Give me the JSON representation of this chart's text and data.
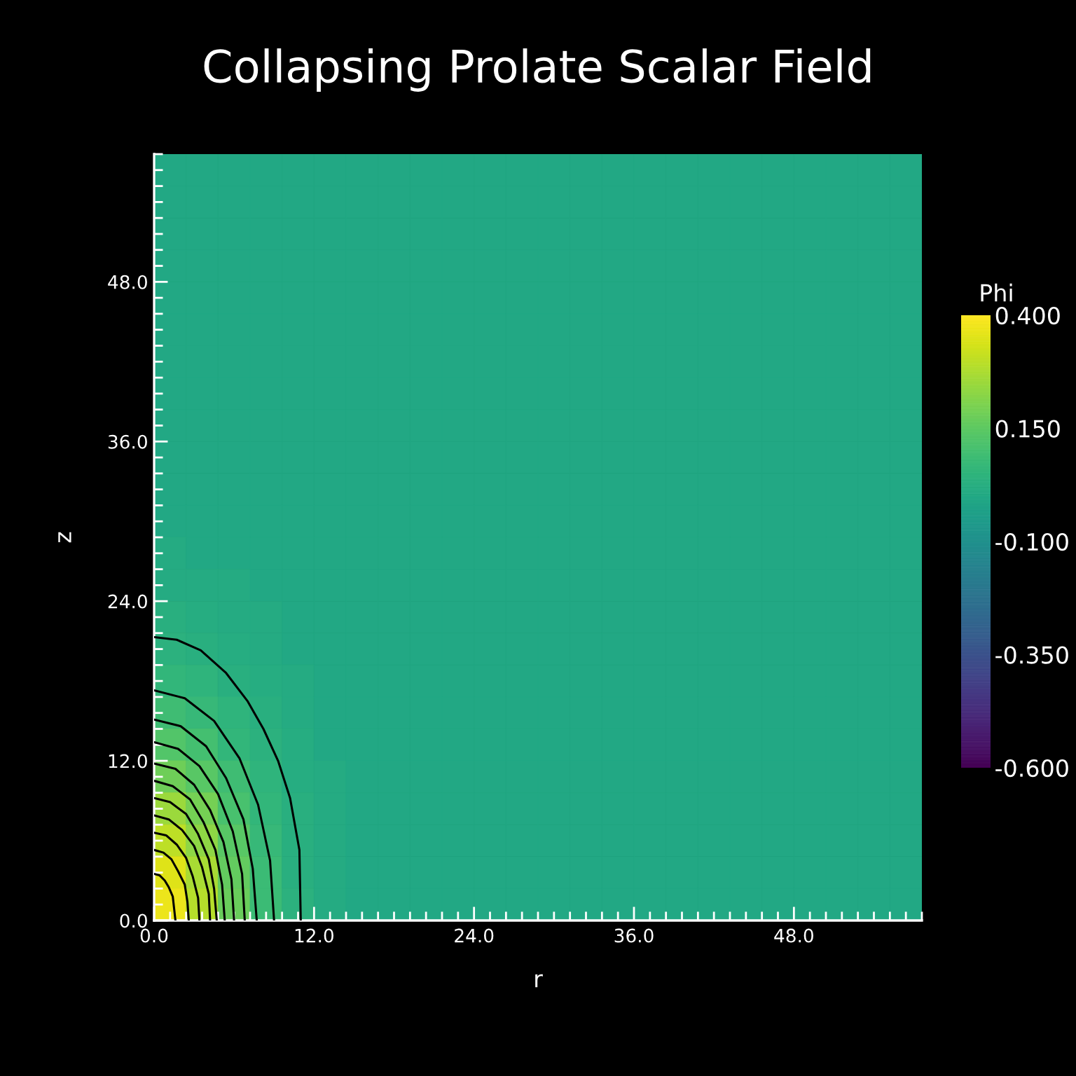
{
  "chart_data": {
    "type": "heatmap",
    "title": "Collapsing Prolate Scalar Field",
    "xlabel": "r",
    "ylabel": "z",
    "clabel": "Phi",
    "cells": [
      [
        0,
        0,
        0,
        0,
        0,
        0,
        0,
        0,
        0,
        0,
        0,
        0,
        0,
        0,
        0,
        0,
        0,
        0,
        0,
        0,
        0,
        0,
        0,
        0
      ],
      [
        0,
        0,
        0,
        0,
        0,
        0,
        0,
        0,
        0,
        0,
        0,
        0,
        0,
        0,
        0,
        0,
        0,
        0,
        0,
        0,
        0,
        0,
        0,
        0
      ],
      [
        0,
        0,
        0,
        0,
        0,
        0,
        0,
        0,
        0,
        0,
        0,
        0,
        0,
        0,
        0,
        0,
        0,
        0,
        0,
        0,
        0,
        0,
        0,
        0
      ],
      [
        0,
        0,
        0,
        0,
        0,
        0,
        0,
        0,
        0,
        0,
        0,
        0,
        0,
        0,
        0,
        0,
        0,
        0,
        0,
        0,
        0,
        0,
        0,
        0
      ],
      [
        0,
        0,
        0,
        0,
        0,
        0,
        0,
        0,
        0,
        0,
        0,
        0,
        0,
        0,
        0,
        0,
        0,
        0,
        0,
        0,
        0,
        0,
        0,
        0
      ],
      [
        0,
        0,
        0,
        0,
        0,
        0,
        0,
        0,
        0,
        0,
        0,
        0,
        0,
        0,
        0,
        0,
        0,
        0,
        0,
        0,
        0,
        0,
        0,
        0
      ],
      [
        0,
        0,
        0,
        0,
        0,
        0,
        0,
        0,
        0,
        0,
        0,
        0,
        0,
        0,
        0,
        0,
        0,
        0,
        0,
        0,
        0,
        0,
        0,
        0
      ],
      [
        0,
        0,
        0,
        0,
        0,
        0,
        0,
        0,
        0,
        0,
        0,
        0,
        0,
        0,
        0,
        0,
        0,
        0,
        0,
        0,
        0,
        0,
        0,
        0
      ],
      [
        0,
        0,
        0,
        0,
        0,
        0,
        0,
        0,
        0,
        0,
        0,
        0,
        0,
        0,
        0,
        0,
        0,
        0,
        0,
        0,
        0,
        0,
        0,
        0
      ],
      [
        0,
        0,
        0,
        0,
        0,
        0,
        0,
        0,
        0,
        0,
        0,
        0,
        0,
        0,
        0,
        0,
        0,
        0,
        0,
        0,
        0,
        0,
        0,
        0
      ],
      [
        0,
        0,
        0,
        0,
        0,
        0,
        0,
        0,
        0,
        0,
        0,
        0,
        0,
        0,
        0,
        0,
        0,
        0,
        0,
        0,
        0,
        0,
        0,
        0
      ],
      [
        0,
        0,
        0,
        0,
        0,
        0,
        0,
        0,
        0,
        0,
        0,
        0,
        0,
        0,
        0,
        0,
        0,
        0,
        0,
        0,
        0,
        0,
        0,
        0
      ],
      [
        0.01,
        0,
        0,
        0,
        0,
        0,
        0,
        0,
        0,
        0,
        0,
        0,
        0,
        0,
        0,
        0,
        0,
        0,
        0,
        0,
        0,
        0,
        0,
        0
      ],
      [
        0.01,
        0.01,
        0.01,
        0,
        0,
        0,
        0,
        0,
        0,
        0,
        0,
        0,
        0,
        0,
        0,
        0,
        0,
        0,
        0,
        0,
        0,
        0,
        0,
        0
      ],
      [
        0.03,
        0.02,
        0.01,
        0.01,
        0,
        0,
        0,
        0,
        0,
        0,
        0,
        0,
        0,
        0,
        0,
        0,
        0,
        0,
        0,
        0,
        0,
        0,
        0,
        0
      ],
      [
        0.04,
        0.03,
        0.02,
        0.01,
        0,
        0,
        0,
        0,
        0,
        0,
        0,
        0,
        0,
        0,
        0,
        0,
        0,
        0,
        0,
        0,
        0,
        0,
        0,
        0
      ],
      [
        0.06,
        0.05,
        0.03,
        0.02,
        0.01,
        0,
        0,
        0,
        0,
        0,
        0,
        0,
        0,
        0,
        0,
        0,
        0,
        0,
        0,
        0,
        0,
        0,
        0,
        0
      ],
      [
        0.09,
        0.07,
        0.05,
        0.03,
        0.01,
        0,
        0,
        0,
        0,
        0,
        0,
        0,
        0,
        0,
        0,
        0,
        0,
        0,
        0,
        0,
        0,
        0,
        0,
        0
      ],
      [
        0.13,
        0.1,
        0.06,
        0.04,
        0.02,
        0,
        0,
        0,
        0,
        0,
        0,
        0,
        0,
        0,
        0,
        0,
        0,
        0,
        0,
        0,
        0,
        0,
        0,
        0
      ],
      [
        0.18,
        0.14,
        0.09,
        0.05,
        0.02,
        0.01,
        0,
        0,
        0,
        0,
        0,
        0,
        0,
        0,
        0,
        0,
        0,
        0,
        0,
        0,
        0,
        0,
        0,
        0
      ],
      [
        0.25,
        0.19,
        0.11,
        0.06,
        0.03,
        0.01,
        0,
        0,
        0,
        0,
        0,
        0,
        0,
        0,
        0,
        0,
        0,
        0,
        0,
        0,
        0,
        0,
        0,
        0
      ],
      [
        0.3,
        0.23,
        0.14,
        0.07,
        0.03,
        0.01,
        0,
        0,
        0,
        0,
        0,
        0,
        0,
        0,
        0,
        0,
        0,
        0,
        0,
        0,
        0,
        0,
        0,
        0
      ],
      [
        0.35,
        0.27,
        0.16,
        0.08,
        0.03,
        0.01,
        0,
        0,
        0,
        0,
        0,
        0,
        0,
        0,
        0,
        0,
        0,
        0,
        0,
        0,
        0,
        0,
        0,
        0
      ],
      [
        0.37,
        0.29,
        0.17,
        0.08,
        0.04,
        0.01,
        0,
        0,
        0,
        0,
        0,
        0,
        0,
        0,
        0,
        0,
        0,
        0,
        0,
        0,
        0,
        0,
        0,
        0
      ]
    ],
    "clim": [
      -0.6,
      0.4
    ],
    "cticks": [
      {
        "value": -0.6,
        "label": "-0.600"
      },
      {
        "value": -0.35,
        "label": "-0.350"
      },
      {
        "value": -0.1,
        "label": "-0.100"
      },
      {
        "value": 0.15,
        "label": "0.150"
      },
      {
        "value": 0.4,
        "label": "0.400"
      }
    ],
    "xlim": [
      0,
      57.6
    ],
    "ylim": [
      0,
      57.6
    ],
    "xticks": [
      {
        "value": 0,
        "label": "0.0"
      },
      {
        "value": 1.2,
        "label": null
      },
      {
        "value": 2.4,
        "label": null
      },
      {
        "value": 3.6,
        "label": null
      },
      {
        "value": 4.8,
        "label": null
      },
      {
        "value": 6,
        "label": null
      },
      {
        "value": 7.2,
        "label": null
      },
      {
        "value": 8.4,
        "label": null
      },
      {
        "value": 9.6,
        "label": null
      },
      {
        "value": 10.8,
        "label": null
      },
      {
        "value": 12,
        "label": "12.0"
      },
      {
        "value": 13.2,
        "label": null
      },
      {
        "value": 14.4,
        "label": null
      },
      {
        "value": 15.6,
        "label": null
      },
      {
        "value": 16.8,
        "label": null
      },
      {
        "value": 18,
        "label": null
      },
      {
        "value": 19.2,
        "label": null
      },
      {
        "value": 20.4,
        "label": null
      },
      {
        "value": 21.6,
        "label": null
      },
      {
        "value": 22.8,
        "label": null
      },
      {
        "value": 24,
        "label": "24.0"
      },
      {
        "value": 25.2,
        "label": null
      },
      {
        "value": 26.4,
        "label": null
      },
      {
        "value": 27.6,
        "label": null
      },
      {
        "value": 28.8,
        "label": null
      },
      {
        "value": 30,
        "label": null
      },
      {
        "value": 31.2,
        "label": null
      },
      {
        "value": 32.4,
        "label": null
      },
      {
        "value": 33.6,
        "label": null
      },
      {
        "value": 34.8,
        "label": null
      },
      {
        "value": 36,
        "label": "36.0"
      },
      {
        "value": 37.2,
        "label": null
      },
      {
        "value": 38.4,
        "label": null
      },
      {
        "value": 39.6,
        "label": null
      },
      {
        "value": 40.8,
        "label": null
      },
      {
        "value": 42,
        "label": null
      },
      {
        "value": 43.2,
        "label": null
      },
      {
        "value": 44.4,
        "label": null
      },
      {
        "value": 45.6,
        "label": null
      },
      {
        "value": 46.8,
        "label": null
      },
      {
        "value": 48,
        "label": "48.0"
      },
      {
        "value": 49.2,
        "label": null
      },
      {
        "value": 50.4,
        "label": null
      },
      {
        "value": 51.6,
        "label": null
      },
      {
        "value": 52.8,
        "label": null
      },
      {
        "value": 54,
        "label": null
      },
      {
        "value": 55.2,
        "label": null
      },
      {
        "value": 56.4,
        "label": null
      },
      {
        "value": 57.6,
        "label": null
      }
    ],
    "yticks": [
      {
        "value": 0,
        "label": "0.0"
      },
      {
        "value": 1.2,
        "label": null
      },
      {
        "value": 2.4,
        "label": null
      },
      {
        "value": 3.6,
        "label": null
      },
      {
        "value": 4.8,
        "label": null
      },
      {
        "value": 6,
        "label": null
      },
      {
        "value": 7.2,
        "label": null
      },
      {
        "value": 8.4,
        "label": null
      },
      {
        "value": 9.6,
        "label": null
      },
      {
        "value": 10.8,
        "label": null
      },
      {
        "value": 12,
        "label": "12.0"
      },
      {
        "value": 13.2,
        "label": null
      },
      {
        "value": 14.4,
        "label": null
      },
      {
        "value": 15.6,
        "label": null
      },
      {
        "value": 16.8,
        "label": null
      },
      {
        "value": 18,
        "label": null
      },
      {
        "value": 19.2,
        "label": null
      },
      {
        "value": 20.4,
        "label": null
      },
      {
        "value": 21.6,
        "label": null
      },
      {
        "value": 22.8,
        "label": null
      },
      {
        "value": 24,
        "label": "24.0"
      },
      {
        "value": 25.2,
        "label": null
      },
      {
        "value": 26.4,
        "label": null
      },
      {
        "value": 27.6,
        "label": null
      },
      {
        "value": 28.8,
        "label": null
      },
      {
        "value": 30,
        "label": null
      },
      {
        "value": 31.2,
        "label": null
      },
      {
        "value": 32.4,
        "label": null
      },
      {
        "value": 33.6,
        "label": null
      },
      {
        "value": 34.8,
        "label": null
      },
      {
        "value": 36,
        "label": "36.0"
      },
      {
        "value": 37.2,
        "label": null
      },
      {
        "value": 38.4,
        "label": null
      },
      {
        "value": 39.6,
        "label": null
      },
      {
        "value": 40.8,
        "label": null
      },
      {
        "value": 42,
        "label": null
      },
      {
        "value": 43.2,
        "label": null
      },
      {
        "value": 44.4,
        "label": null
      },
      {
        "value": 45.6,
        "label": null
      },
      {
        "value": 46.8,
        "label": null
      },
      {
        "value": 48,
        "label": "48.0"
      },
      {
        "value": 49.2,
        "label": null
      },
      {
        "value": 50.4,
        "label": null
      },
      {
        "value": 51.6,
        "label": null
      },
      {
        "value": 52.8,
        "label": null
      },
      {
        "value": 54,
        "label": null
      },
      {
        "value": 55.2,
        "label": null
      },
      {
        "value": 56.4,
        "label": null
      },
      {
        "value": 57.6,
        "label": null
      }
    ],
    "series": [
      {
        "type": "line",
        "color": "#000000",
        "x": [
          0,
          1.7,
          3.5,
          5.4,
          7.0,
          8.2,
          9.3,
          10.2,
          10.9,
          11.0
        ],
        "values": [
          21.3,
          21.1,
          20.3,
          18.6,
          16.5,
          14.4,
          12.0,
          9.2,
          5.3,
          0
        ]
      },
      {
        "type": "line",
        "color": "#000000",
        "x": [
          0,
          2.3,
          4.5,
          6.4,
          7.8,
          8.7,
          9.0
        ],
        "values": [
          17.3,
          16.7,
          15.0,
          12.2,
          8.7,
          4.5,
          0
        ]
      },
      {
        "type": "line",
        "color": "#000000",
        "x": [
          0,
          2.0,
          3.9,
          5.4,
          6.7,
          7.4,
          7.7
        ],
        "values": [
          15.1,
          14.6,
          13.1,
          10.7,
          7.6,
          3.9,
          0
        ]
      },
      {
        "type": "line",
        "color": "#000000",
        "x": [
          0,
          1.8,
          3.4,
          4.8,
          5.9,
          6.6,
          6.8
        ],
        "values": [
          13.4,
          12.9,
          11.6,
          9.5,
          6.7,
          3.5,
          0
        ]
      },
      {
        "type": "line",
        "color": "#000000",
        "x": [
          0,
          1.6,
          3.0,
          4.2,
          5.2,
          5.8,
          6.0
        ],
        "values": [
          11.8,
          11.4,
          10.2,
          8.3,
          5.9,
          3.1,
          0
        ]
      },
      {
        "type": "line",
        "color": "#000000",
        "x": [
          0,
          1.4,
          2.7,
          3.7,
          4.6,
          5.1,
          5.3
        ],
        "values": [
          10.5,
          10.1,
          9.1,
          7.4,
          5.3,
          2.7,
          0
        ]
      },
      {
        "type": "line",
        "color": "#000000",
        "x": [
          0,
          1.2,
          2.4,
          3.3,
          4.1,
          4.5,
          4.7
        ],
        "values": [
          9.2,
          8.9,
          8.0,
          6.5,
          4.6,
          2.4,
          0
        ]
      },
      {
        "type": "line",
        "color": "#000000",
        "x": [
          0,
          1.1,
          2.1,
          3.0,
          3.6,
          4.1,
          4.2
        ],
        "values": [
          7.9,
          7.6,
          6.8,
          5.6,
          4.0,
          2.0,
          0
        ]
      },
      {
        "type": "line",
        "color": "#000000",
        "x": [
          0,
          0.9,
          1.7,
          2.4,
          2.9,
          3.3,
          3.4
        ],
        "values": [
          6.6,
          6.4,
          5.7,
          4.7,
          3.3,
          1.7,
          0
        ]
      },
      {
        "type": "line",
        "color": "#000000",
        "x": [
          0,
          0.7,
          1.3,
          1.8,
          2.3,
          2.5,
          2.6
        ],
        "values": [
          5.3,
          5.1,
          4.6,
          3.7,
          2.7,
          1.4,
          0
        ]
      },
      {
        "type": "line",
        "color": "#000000",
        "x": [
          0,
          0.4,
          0.8,
          1.1,
          1.4,
          1.5,
          1.6
        ],
        "values": [
          3.5,
          3.4,
          3.0,
          2.5,
          1.8,
          0.9,
          0
        ]
      }
    ]
  }
}
